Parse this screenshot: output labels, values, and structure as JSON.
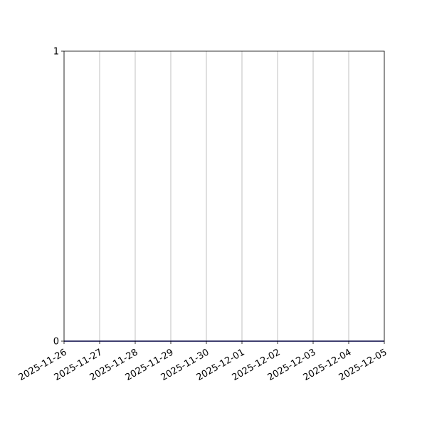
{
  "chart_data": {
    "type": "line",
    "title": "",
    "xlabel": "",
    "ylabel": "",
    "x": [
      "2025-11-26",
      "2025-11-27",
      "2025-11-28",
      "2025-11-29",
      "2025-11-30",
      "2025-12-01",
      "2025-12-02",
      "2025-12-03",
      "2025-12-04",
      "2025-12-05"
    ],
    "series": [
      {
        "values": [
          0,
          0,
          0,
          0,
          0,
          0,
          0,
          0,
          0,
          0
        ],
        "color": "#00008b"
      }
    ],
    "xticks": [
      "2025-11-26",
      "2025-11-27",
      "2025-11-28",
      "2025-11-29",
      "2025-11-30",
      "2025-12-01",
      "2025-12-02",
      "2025-12-03",
      "2025-12-04",
      "2025-12-05"
    ],
    "yticks": [
      "0",
      "1"
    ],
    "xlim": [
      "2025-11-26",
      "2025-12-05"
    ],
    "ylim": [
      0,
      1
    ],
    "grid": "x-axis vertical lines",
    "grid_color": "#b0b0b0",
    "legend": "none"
  }
}
